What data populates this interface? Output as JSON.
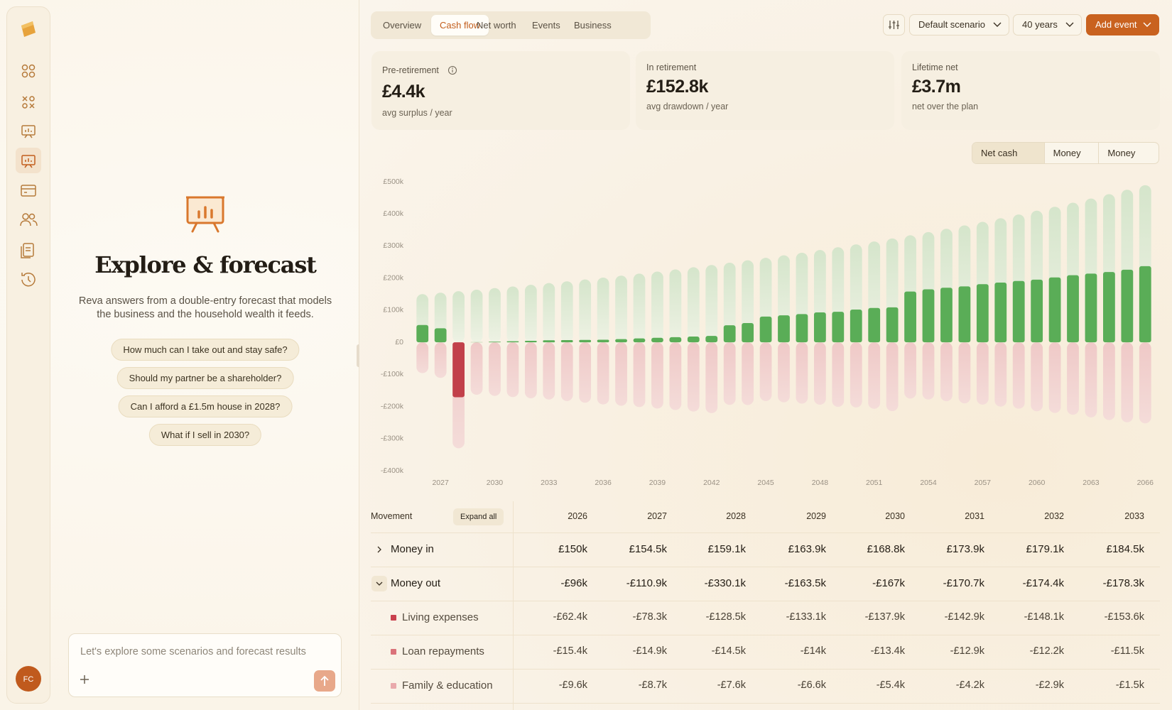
{
  "sidebar": {
    "avatar": "FC"
  },
  "assistant": {
    "title": "Explore & forecast",
    "description": "Reva answers from a double-entry forecast that models the business and the household wealth it feeds.",
    "suggestions": [
      "How much can I take out and stay safe?",
      "Should my partner be a shareholder?",
      "Can I afford a £1.5m house in 2028?",
      "What if I sell in 2030?"
    ],
    "input_placeholder": "Let's explore some scenarios and forecast results"
  },
  "tabs": {
    "items": [
      "Overview",
      "Cash flow",
      "Net worth",
      "Events",
      "Business"
    ],
    "active": 1
  },
  "toolbar": {
    "scenario": "Default scenario",
    "horizon": "40 years",
    "add_event": "Add event"
  },
  "kpis": [
    {
      "label": "Pre-retirement",
      "value": "£4.4k",
      "sub": "avg surplus / year"
    },
    {
      "label": "In retirement",
      "value": "£152.8k",
      "sub": "avg drawdown / year"
    },
    {
      "label": "Lifetime net",
      "value": "£3.7m",
      "sub": "net over the plan"
    }
  ],
  "chart_data": {
    "type": "bar",
    "active_series": 0,
    "x": [
      2026,
      2027,
      2028,
      2029,
      2030,
      2031,
      2032,
      2033,
      2034,
      2035,
      2036,
      2037,
      2038,
      2039,
      2040,
      2041,
      2042,
      2043,
      2044,
      2045,
      2046,
      2047,
      2048,
      2049,
      2050,
      2051,
      2052,
      2053,
      2054,
      2055,
      2056,
      2057,
      2058,
      2059,
      2060,
      2061,
      2062,
      2063,
      2064,
      2065,
      2066
    ],
    "xlim": [
      2025.5,
      2066.5
    ],
    "xticks": [
      2027,
      2030,
      2033,
      2036,
      2039,
      2042,
      2045,
      2048,
      2051,
      2054,
      2057,
      2060,
      2063,
      2066
    ],
    "ylim": [
      -400,
      500
    ],
    "yticks": [
      {
        "value": 500,
        "label": "£500k"
      },
      {
        "value": 400,
        "label": "£400k"
      },
      {
        "value": 300,
        "label": "£300k"
      },
      {
        "value": 200,
        "label": "£200k"
      },
      {
        "value": 100,
        "label": "£100k"
      },
      {
        "value": 0,
        "label": "£0"
      },
      {
        "value": -100,
        "label": "-£100k"
      },
      {
        "value": -200,
        "label": "-£200k"
      },
      {
        "value": -300,
        "label": "-£300k"
      },
      {
        "value": -400,
        "label": "-£400k"
      }
    ],
    "grid": false,
    "series": [
      {
        "name": "Net cash flow",
        "color": "#5aad57",
        "negative_color": "#c2404a",
        "values": [
          54,
          43.6,
          -171,
          0.4,
          1.8,
          3.2,
          4.7,
          6.2,
          7,
          7.5,
          8,
          10,
          12,
          14,
          16,
          18,
          20,
          53,
          60,
          80,
          84,
          88,
          93,
          95,
          102,
          107,
          109,
          158,
          165,
          170,
          174,
          181,
          186,
          191,
          195,
          202,
          209,
          214,
          219,
          226,
          237
        ]
      },
      {
        "name": "Money in",
        "color": "#dbe8d2",
        "values": [
          150,
          154.5,
          159.1,
          163.9,
          168.8,
          173.9,
          179.1,
          184.5,
          190,
          195.7,
          201.6,
          207.6,
          213.9,
          220.3,
          226.9,
          233.7,
          240.7,
          247.9,
          255.4,
          263,
          270.9,
          279,
          287.4,
          296,
          304.9,
          314.1,
          323.5,
          333.2,
          343.2,
          353.5,
          364.1,
          375,
          386.3,
          397.9,
          409.8,
          422.1,
          434.7,
          447.8,
          461.2,
          475.1,
          489.3
        ]
      },
      {
        "name": "Money out",
        "color": "#f2d0cf",
        "values": [
          -96,
          -110.9,
          -330.1,
          -163.5,
          -167,
          -170.7,
          -174.4,
          -178.3,
          -183,
          -188.2,
          -193.6,
          -197.6,
          -201.9,
          -206.3,
          -210.9,
          -215.7,
          -220.7,
          -194.9,
          -195.4,
          -183,
          -186.9,
          -191,
          -194.4,
          -201,
          -202.9,
          -207.1,
          -214.5,
          -175.2,
          -178.2,
          -183.5,
          -190.1,
          -194,
          -200.3,
          -206.9,
          -214.8,
          -220.1,
          -225.7,
          -233.8,
          -242.2,
          -249.1,
          -252.3
        ]
      }
    ]
  },
  "table": {
    "header": "Movement",
    "expand": "Expand all",
    "columns": [
      "2026",
      "2027",
      "2028",
      "2029",
      "2030",
      "2031",
      "2032",
      "2033"
    ],
    "rows": [
      {
        "label": "Money in",
        "expanded": false,
        "values": [
          "£150k",
          "£154.5k",
          "£159.1k",
          "£163.9k",
          "£168.8k",
          "£173.9k",
          "£179.1k",
          "£184.5k"
        ]
      },
      {
        "label": "Money out",
        "expanded": true,
        "values": [
          "-£96k",
          "-£110.9k",
          "-£330.1k",
          "-£163.5k",
          "-£167k",
          "-£170.7k",
          "-£174.4k",
          "-£178.3k"
        ],
        "children": [
          {
            "label": "Living expenses",
            "color": "#c9404d",
            "values": [
              "-£62.4k",
              "-£78.3k",
              "-£128.5k",
              "-£133.1k",
              "-£137.9k",
              "-£142.9k",
              "-£148.1k",
              "-£153.6k"
            ]
          },
          {
            "label": "Loan repayments",
            "color": "#da7279",
            "values": [
              "-£15.4k",
              "-£14.9k",
              "-£14.5k",
              "-£14k",
              "-£13.4k",
              "-£12.9k",
              "-£12.2k",
              "-£11.5k"
            ]
          },
          {
            "label": "Family & education",
            "color": "#e9a9ab",
            "values": [
              "-£9.6k",
              "-£8.7k",
              "-£7.6k",
              "-£6.6k",
              "-£5.4k",
              "-£4.2k",
              "-£2.9k",
              "-£1.5k"
            ]
          }
        ]
      }
    ]
  }
}
